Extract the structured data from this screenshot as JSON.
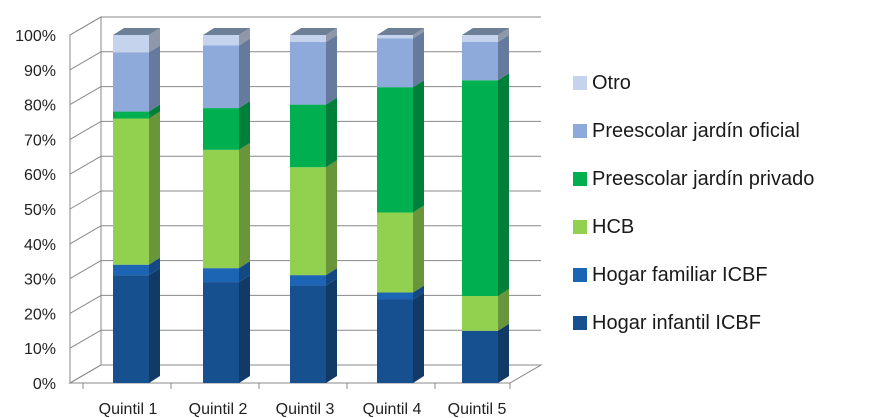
{
  "chart_data": {
    "type": "bar",
    "stacked": true,
    "three_d": true,
    "categories": [
      "Quintil 1",
      "Quintil 2",
      "Quintil 3",
      "Quintil 4",
      "Quintil 5"
    ],
    "y_ticks": [
      "0%",
      "10%",
      "20%",
      "30%",
      "40%",
      "50%",
      "60%",
      "70%",
      "80%",
      "90%",
      "100%"
    ],
    "ylim": [
      0,
      100
    ],
    "grid": true,
    "legend_position": "right",
    "series": [
      {
        "name": "Hogar infantil ICBF",
        "color": "#17508f",
        "values": [
          31,
          29,
          28,
          24,
          15
        ]
      },
      {
        "name": "Hogar familiar ICBF",
        "color": "#1c64b4",
        "values": [
          3,
          4,
          3,
          2,
          0
        ]
      },
      {
        "name": "HCB",
        "color": "#92d050",
        "values": [
          42,
          34,
          31,
          23,
          10
        ]
      },
      {
        "name": "Preescolar jardín privado",
        "color": "#00b050",
        "values": [
          2,
          12,
          18,
          36,
          62
        ]
      },
      {
        "name": "Preescolar jardín oficial",
        "color": "#8eaadb",
        "values": [
          17,
          18,
          18,
          14,
          11
        ]
      },
      {
        "name": "Otro",
        "color": "#c5d3ec",
        "values": [
          5,
          3,
          2,
          1,
          2
        ]
      }
    ],
    "legend_order": [
      "Otro",
      "Preescolar jardín oficial",
      "Preescolar jardín privado",
      "HCB",
      "Hogar familiar ICBF",
      "Hogar infantil ICBF"
    ]
  }
}
